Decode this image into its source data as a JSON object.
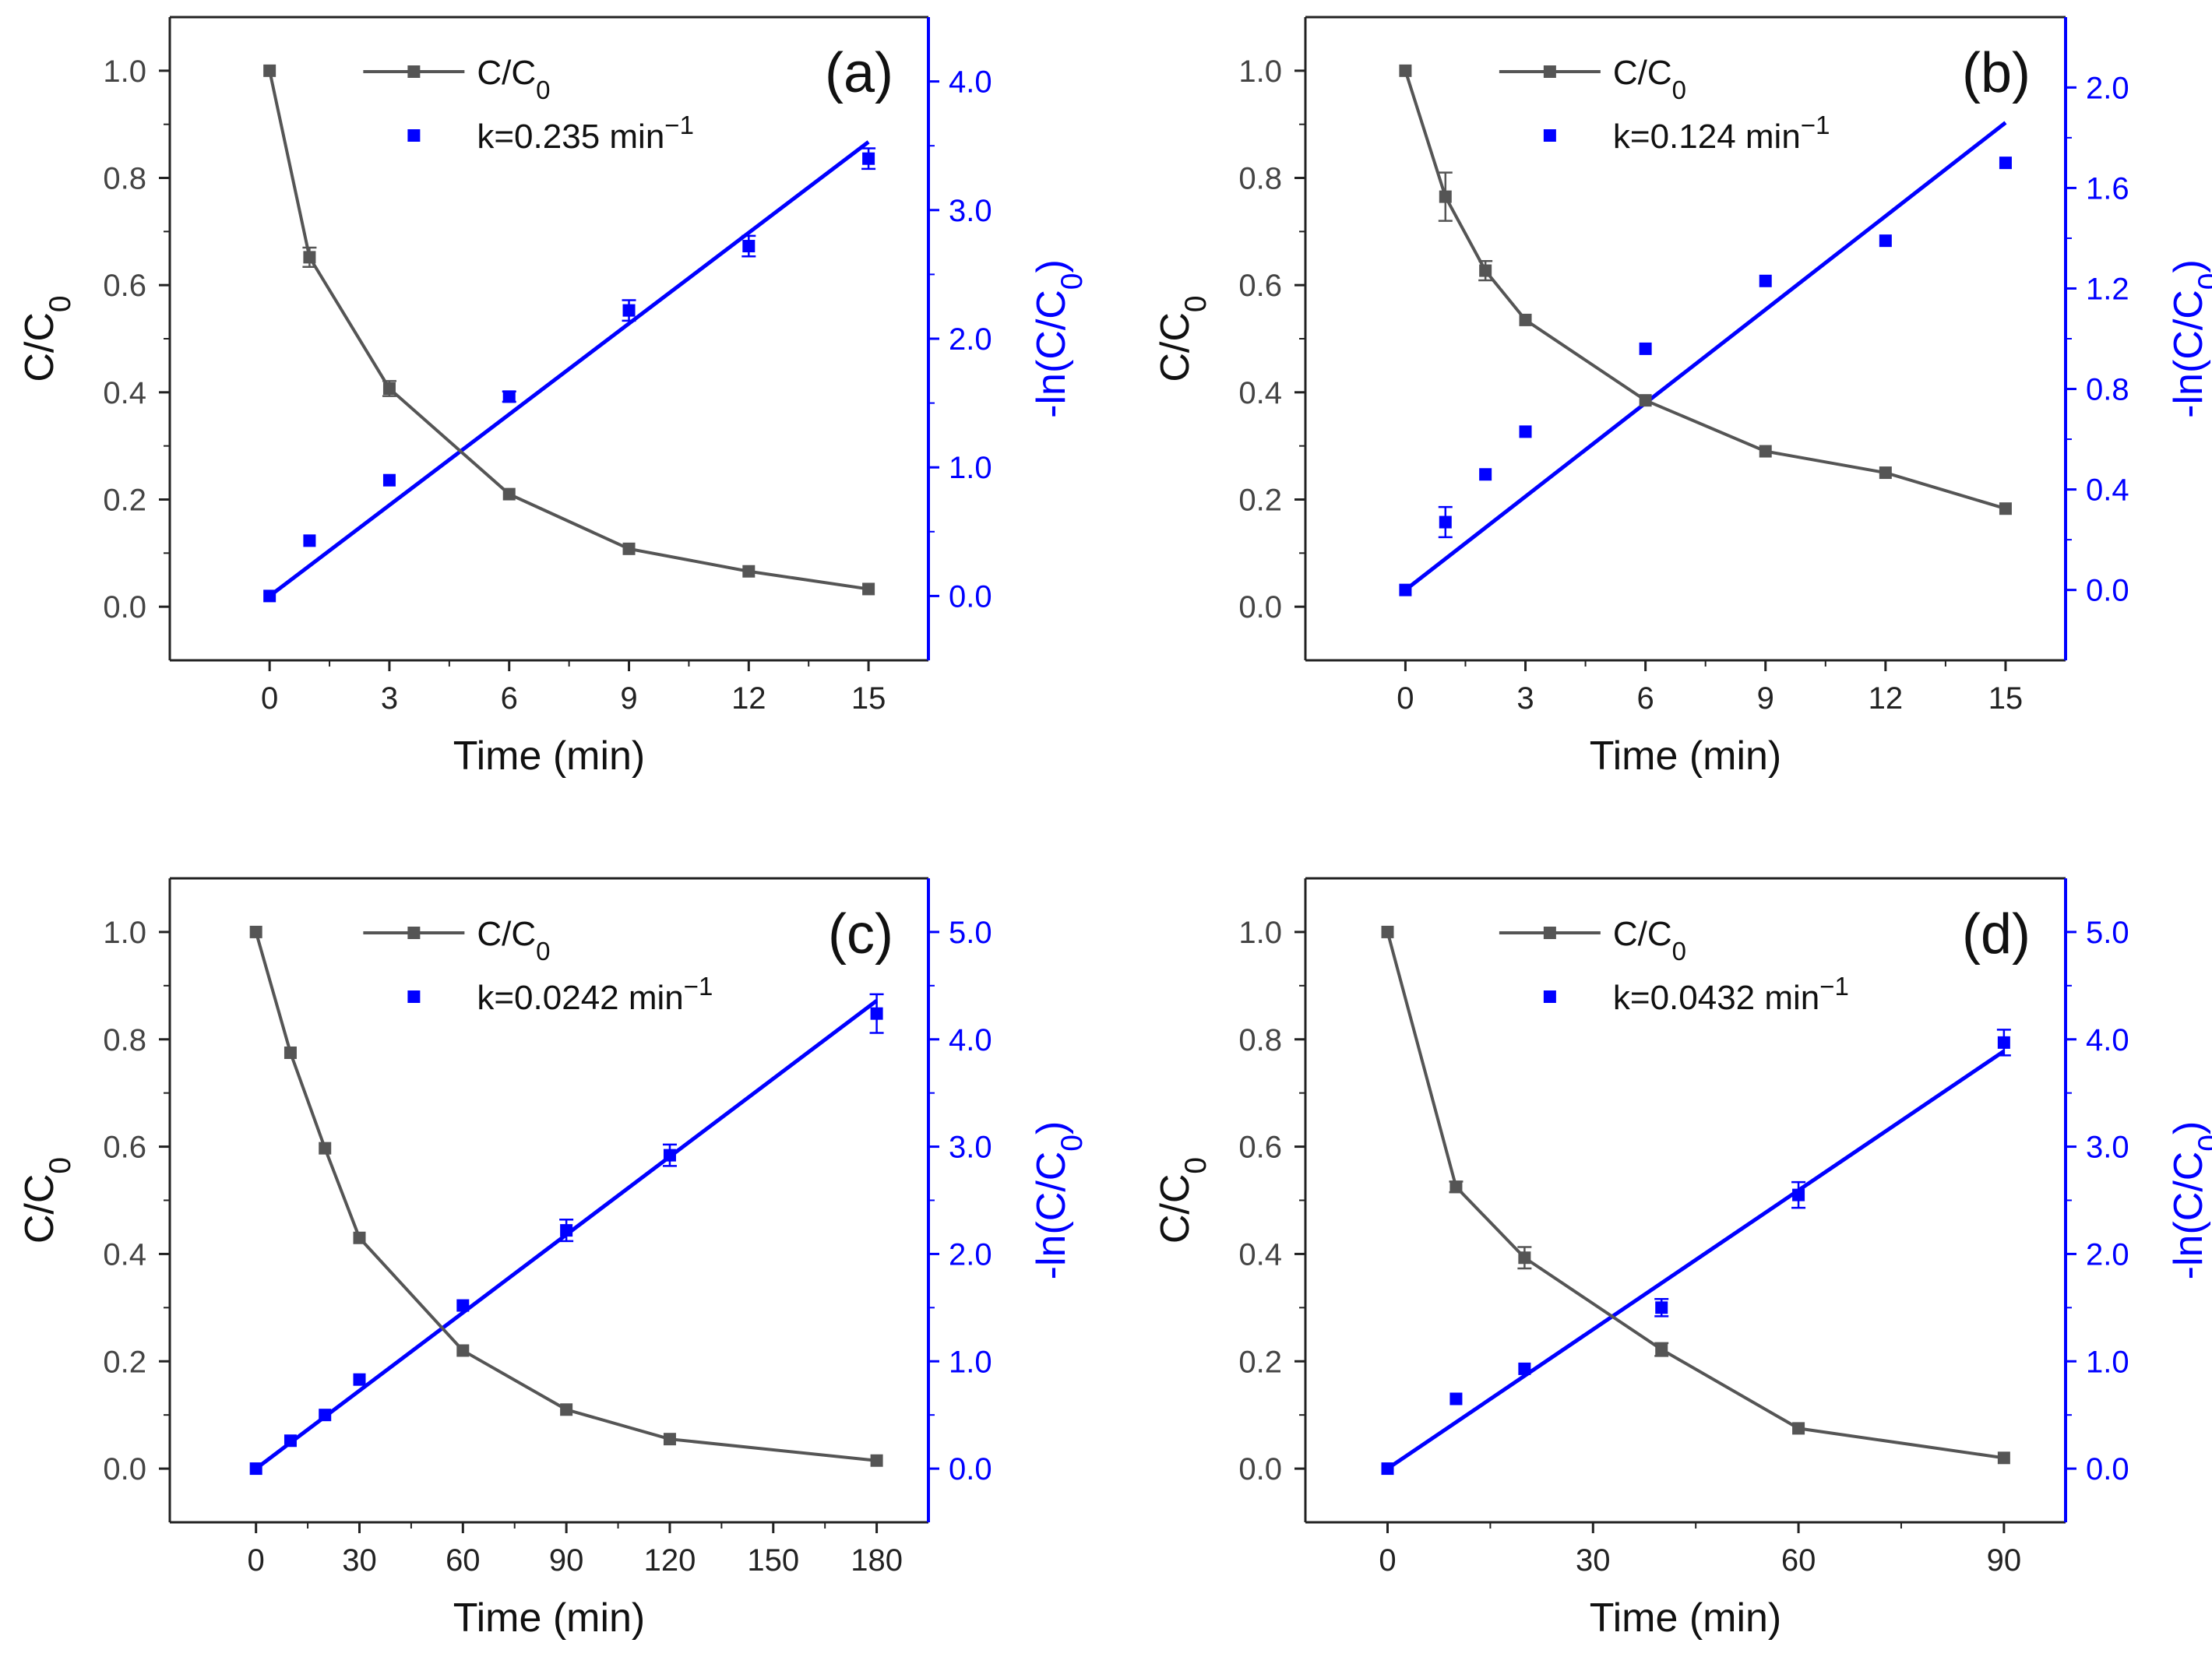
{
  "colors": {
    "decay": "#555555",
    "fit": "#0000FF",
    "axis_left": "#222222",
    "axis_right": "#0000FF"
  },
  "chart_data": [
    {
      "type": "line",
      "panel": "(a)",
      "xlabel": "Time (min)",
      "ylabel": "C/C0",
      "y2label": "-ln(C/C0)",
      "legend": {
        "decay": "C/C0",
        "fit": "k=0.235 min-1",
        "placement": "top-center"
      },
      "xlim": [
        -2.5,
        16.5
      ],
      "xticks": [
        0,
        3,
        6,
        9,
        12,
        15
      ],
      "ylim": [
        -0.1,
        1.1
      ],
      "yticks": [
        0.0,
        0.2,
        0.4,
        0.6,
        0.8,
        1.0
      ],
      "y2lim": [
        -0.5,
        4.5
      ],
      "y2ticks": [
        0.0,
        1.0,
        2.0,
        3.0,
        4.0
      ],
      "y2tick_format": 1,
      "decay": {
        "x": [
          0,
          1,
          3,
          6,
          9,
          12,
          15
        ],
        "y": [
          1.0,
          0.652,
          0.407,
          0.21,
          0.108,
          0.066,
          0.033
        ],
        "err": [
          0,
          0.018,
          0.014,
          0,
          0,
          0,
          0
        ]
      },
      "transformed": {
        "x": [
          0,
          1,
          3,
          6,
          9,
          12,
          15
        ],
        "y": [
          0.0,
          0.43,
          0.9,
          1.55,
          2.22,
          2.72,
          3.4
        ],
        "err": [
          0,
          0,
          0,
          0.04,
          0.08,
          0.08,
          0.08
        ]
      },
      "fit": {
        "x": [
          0,
          15
        ],
        "y": [
          0.0,
          3.53
        ]
      }
    },
    {
      "type": "line",
      "panel": "(b)",
      "xlabel": "Time (min)",
      "ylabel": "C/C0",
      "y2label": "-ln(C/C0)",
      "legend": {
        "decay": "C/C0",
        "fit": "k=0.124 min-1",
        "placement": "top-center"
      },
      "xlim": [
        -2.5,
        16.5
      ],
      "xticks": [
        0,
        3,
        6,
        9,
        12,
        15
      ],
      "ylim": [
        -0.1,
        1.1
      ],
      "yticks": [
        0.0,
        0.2,
        0.4,
        0.6,
        0.8,
        1.0
      ],
      "y2lim": [
        -0.28,
        2.28
      ],
      "y2ticks": [
        0.0,
        0.4,
        0.8,
        1.2,
        1.6,
        2.0
      ],
      "y2tick_format": 1,
      "decay": {
        "x": [
          0,
          1,
          2,
          3,
          6,
          9,
          12,
          15
        ],
        "y": [
          1.0,
          0.765,
          0.627,
          0.535,
          0.385,
          0.29,
          0.25,
          0.183
        ],
        "err": [
          0,
          0.045,
          0.018,
          0,
          0,
          0,
          0,
          0
        ]
      },
      "transformed": {
        "x": [
          0,
          1,
          2,
          3,
          6,
          9,
          12,
          15
        ],
        "y": [
          0.0,
          0.27,
          0.46,
          0.63,
          0.96,
          1.23,
          1.39,
          1.7
        ],
        "err": [
          0,
          0.06,
          0,
          0,
          0,
          0,
          0,
          0
        ]
      },
      "fit": {
        "x": [
          0,
          15
        ],
        "y": [
          0.0,
          1.86
        ]
      }
    },
    {
      "type": "line",
      "panel": "(c)",
      "xlabel": "Time (min)",
      "ylabel": "C/C0",
      "y2label": "-ln(C/C0)",
      "legend": {
        "decay": "C/C0",
        "fit": "k=0.0242 min-1",
        "placement": "top-center"
      },
      "xlim": [
        -25,
        195
      ],
      "xticks": [
        0,
        30,
        60,
        90,
        120,
        150,
        180
      ],
      "ylim": [
        -0.1,
        1.1
      ],
      "yticks": [
        0.0,
        0.2,
        0.4,
        0.6,
        0.8,
        1.0
      ],
      "y2lim": [
        -0.5,
        5.5
      ],
      "y2ticks": [
        0.0,
        1.0,
        2.0,
        3.0,
        4.0,
        5.0
      ],
      "y2tick_format": 1,
      "decay": {
        "x": [
          0,
          10,
          20,
          30,
          60,
          90,
          120,
          180
        ],
        "y": [
          1.0,
          0.775,
          0.597,
          0.43,
          0.22,
          0.11,
          0.055,
          0.015
        ],
        "err": [
          0,
          0,
          0,
          0,
          0,
          0,
          0,
          0
        ]
      },
      "transformed": {
        "x": [
          0,
          10,
          20,
          30,
          60,
          90,
          120,
          180
        ],
        "y": [
          0.0,
          0.26,
          0.5,
          0.83,
          1.52,
          2.22,
          2.92,
          4.24
        ],
        "err": [
          0,
          0,
          0,
          0,
          0,
          0.1,
          0.1,
          0.18
        ]
      },
      "fit": {
        "x": [
          0,
          180
        ],
        "y": [
          0.0,
          4.36
        ]
      }
    },
    {
      "type": "line",
      "panel": "(d)",
      "xlabel": "Time (min)",
      "ylabel": "C/C0",
      "y2label": "-ln(C/C0)",
      "legend": {
        "decay": "C/C0",
        "fit": "k=0.0432 min-1",
        "placement": "top-center"
      },
      "xlim": [
        -12,
        99
      ],
      "xticks": [
        0,
        30,
        60,
        90
      ],
      "ylim": [
        -0.1,
        1.1
      ],
      "yticks": [
        0.0,
        0.2,
        0.4,
        0.6,
        0.8,
        1.0
      ],
      "y2lim": [
        -0.5,
        5.5
      ],
      "y2ticks": [
        0.0,
        1.0,
        2.0,
        3.0,
        4.0,
        5.0
      ],
      "y2tick_format": 1,
      "decay": {
        "x": [
          0,
          10,
          20,
          40,
          60,
          90
        ],
        "y": [
          1.0,
          0.525,
          0.393,
          0.222,
          0.075,
          0.02
        ],
        "err": [
          0,
          0.01,
          0.02,
          0.012,
          0,
          0
        ]
      },
      "transformed": {
        "x": [
          0,
          10,
          20,
          40,
          60,
          90
        ],
        "y": [
          0.0,
          0.65,
          0.93,
          1.5,
          2.55,
          3.97
        ],
        "err": [
          0,
          0,
          0,
          0.08,
          0.12,
          0.12
        ]
      },
      "fit": {
        "x": [
          0,
          90
        ],
        "y": [
          0.0,
          3.89
        ]
      }
    }
  ]
}
